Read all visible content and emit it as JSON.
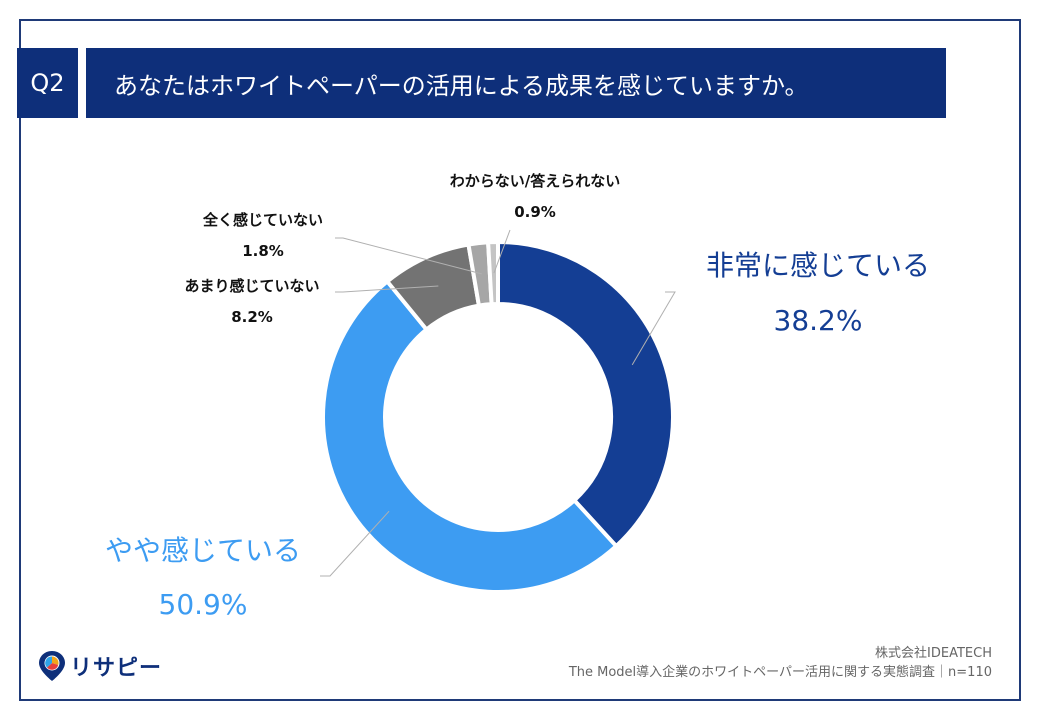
{
  "header": {
    "badge": "Q2",
    "question": "あなたはホワイトペーパーの活用による成果を感じていますか。"
  },
  "chart_data": {
    "type": "pie",
    "donut": true,
    "title": "あなたはホワイトペーパーの活用による成果を感じていますか。",
    "categories": [
      "非常に感じている",
      "やや感じている",
      "あまり感じていない",
      "全く感じていない",
      "わからない/答えられない"
    ],
    "values": [
      38.2,
      50.9,
      8.2,
      1.8,
      0.9
    ],
    "labels": [
      "38.2%",
      "50.9%",
      "8.2%",
      "1.8%",
      "0.9%"
    ],
    "colors": [
      "#143e94",
      "#3d9cf2",
      "#737373",
      "#a6a6a6",
      "#c4c4c4"
    ]
  },
  "footer": {
    "company": "株式会社IDEATECH",
    "survey": "The Model導入企業のホワイトペーパー活用に関する実態調査｜n=110"
  },
  "logo": {
    "text": "リサピー"
  }
}
